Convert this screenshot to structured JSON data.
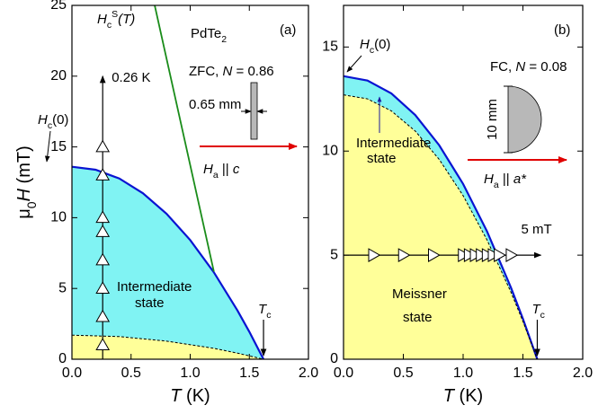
{
  "chart_data": [
    {
      "type": "line",
      "xlabel": [
        "T",
        " (K)"
      ],
      "ylabel": [
        "μ",
        "0",
        "H",
        " (mT)"
      ],
      "xlim": [
        0,
        2
      ],
      "xticks": [
        {
          "value": 0,
          "label": "0.0"
        },
        0.5,
        {
          "value": 1,
          "label": "1.0"
        },
        1.5,
        {
          "value": 2,
          "label": "2.0"
        }
      ],
      "ylim": [
        0,
        25
      ],
      "yticks": [
        0,
        5,
        10,
        15,
        20,
        25
      ],
      "series": [
        {
          "style": "solid",
          "color": "#0a14d2",
          "fill": "#80f3f3",
          "x": [
            0,
            0.2,
            0.4,
            0.6,
            0.8,
            1.0,
            1.2,
            1.4,
            1.5,
            1.62
          ],
          "values": [
            13.6,
            13.39,
            12.77,
            11.73,
            10.28,
            8.42,
            6.14,
            3.44,
            1.94,
            0
          ]
        },
        {
          "style": "dashed",
          "color": "#000000",
          "fill": "#ffff99",
          "x": [
            0,
            0.4,
            0.8,
            1.2,
            1.4,
            1.62
          ],
          "values": [
            1.7,
            1.6,
            1.28,
            0.77,
            0.43,
            0
          ]
        },
        {
          "style": "solid",
          "color": "#1a8c1a",
          "x": [
            0.7,
            1.2
          ],
          "values": [
            25,
            6.2
          ]
        },
        {
          "style": "markers",
          "marker": "triangle-up",
          "color": "#000000",
          "x": [
            0.26,
            0.26,
            0.26,
            0.26,
            0.26,
            0.26,
            0.26,
            0.26
          ],
          "values": [
            1,
            3,
            5,
            7,
            9,
            10,
            13,
            15
          ]
        }
      ],
      "arrow": {
        "x": 0.26,
        "from": 0,
        "to": 20,
        "label": "0.26 K"
      },
      "texts": {
        "title": [
          "PdTe",
          "2"
        ],
        "panel_label": "(a)",
        "hcs_label": [
          "H",
          "c",
          "S",
          "(T)"
        ],
        "condition": [
          "ZFC, ",
          "N",
          " = 0.86"
        ],
        "thickness": "0.65 mm",
        "field": [
          "H",
          "a",
          " || ",
          "c"
        ],
        "hc0": [
          "H",
          "c",
          "(0)"
        ],
        "region": [
          "Intermediate",
          "state"
        ],
        "tc": [
          "T",
          "c"
        ]
      }
    },
    {
      "type": "line",
      "xlabel": [
        "T",
        " (K)"
      ],
      "xlim": [
        0,
        2
      ],
      "xticks": [
        {
          "value": 0,
          "label": "0.0"
        },
        0.5,
        {
          "value": 1,
          "label": "1.0"
        },
        1.5,
        {
          "value": 2,
          "label": "2.0"
        }
      ],
      "ylim": [
        0,
        17
      ],
      "yticks": [
        0,
        5,
        10,
        15
      ],
      "series": [
        {
          "style": "solid",
          "color": "#0a14d2",
          "fill": "#80f3f3",
          "x": [
            0,
            0.2,
            0.4,
            0.6,
            0.8,
            1.0,
            1.2,
            1.4,
            1.5,
            1.62
          ],
          "values": [
            13.6,
            13.39,
            12.77,
            11.73,
            10.28,
            8.42,
            6.14,
            3.44,
            1.94,
            0
          ]
        },
        {
          "style": "dashed",
          "color": "#000000",
          "fill": "#ffff99",
          "x": [
            0,
            0.2,
            0.4,
            0.6,
            0.8,
            1.0,
            1.2,
            1.4,
            1.5,
            1.62
          ],
          "values": [
            12.7,
            12.51,
            11.93,
            10.96,
            9.6,
            7.86,
            5.73,
            3.22,
            1.82,
            0
          ]
        },
        {
          "style": "markers",
          "marker": "triangle-right",
          "color": "#000000",
          "x": [
            0.25,
            0.5,
            0.75,
            1.0,
            1.05,
            1.1,
            1.15,
            1.2,
            1.25,
            1.3,
            1.4
          ],
          "values": [
            5,
            5,
            5,
            5,
            5,
            5,
            5,
            5,
            5,
            5,
            5
          ]
        }
      ],
      "arrow": {
        "y": 5,
        "from": 0,
        "to": 1.65,
        "label": "5 mT"
      },
      "texts": {
        "panel_label": "(b)",
        "hc0": [
          "H",
          "c",
          "(0)"
        ],
        "condition": [
          "FC, ",
          "N",
          " = 0.08"
        ],
        "length": "10 mm",
        "field": [
          "H",
          "a",
          " || ",
          "a*"
        ],
        "region": [
          "Intermediate",
          "state"
        ],
        "meissner": [
          "Meissner",
          "state"
        ],
        "tc": [
          "T",
          "c"
        ]
      }
    }
  ]
}
